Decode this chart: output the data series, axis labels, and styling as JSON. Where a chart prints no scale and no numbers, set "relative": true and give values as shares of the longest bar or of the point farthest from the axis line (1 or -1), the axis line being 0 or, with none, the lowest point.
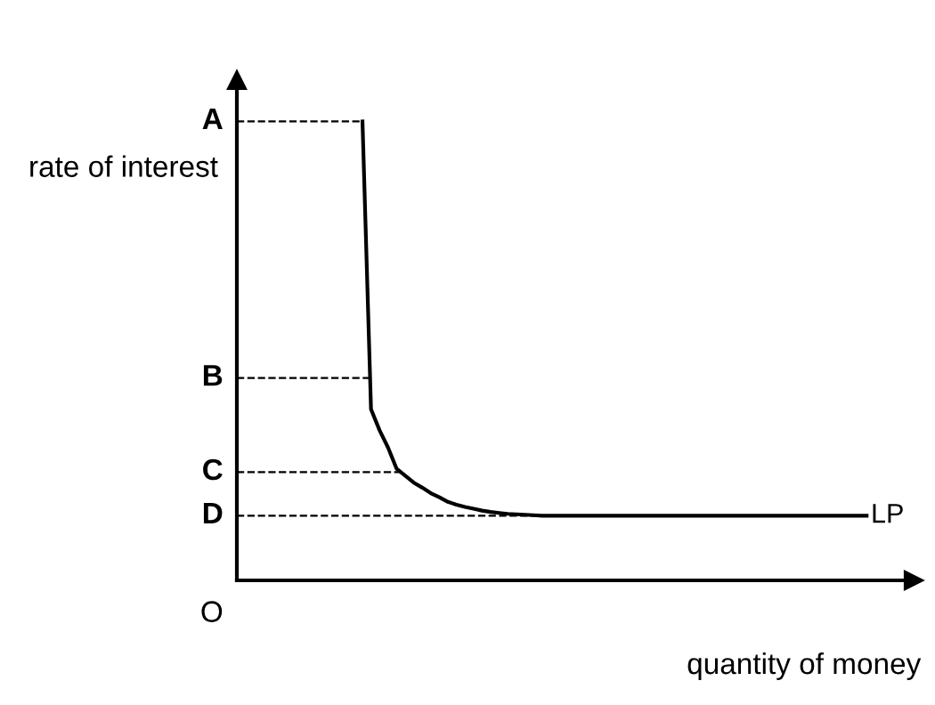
{
  "chart_data": {
    "type": "line",
    "relative": true,
    "xlabel": "quantity of money",
    "ylabel": "rate of interest",
    "tick_labels": false,
    "legend": false,
    "grid": false,
    "marker": "none",
    "line_style": "solid",
    "categories": [
      null,
      null,
      null,
      null,
      null,
      null,
      null,
      null,
      null,
      null,
      null,
      null,
      null,
      null,
      null,
      null,
      null,
      null,
      null,
      null,
      null,
      null,
      null,
      null,
      null,
      null,
      null,
      null,
      null,
      null,
      null,
      null,
      null,
      null,
      null,
      null,
      null,
      null,
      null,
      null,
      null,
      null,
      null,
      null,
      null,
      null,
      null,
      null,
      null,
      null,
      null,
      null,
      null,
      null,
      null,
      null,
      null,
      null,
      null,
      null
    ],
    "series": [
      {
        "name": "LP",
        "color": "#000000",
        "values": [
          1,
          0.373,
          0.327,
          0.289,
          0.243,
          0.228,
          0.213,
          0.202,
          0.19,
          0.181,
          0.171,
          0.165,
          0.16,
          0.156,
          0.152,
          0.149,
          0.147,
          0.145,
          0.144,
          0.143,
          0.142,
          0.141,
          0.141,
          0.141,
          0.141,
          0.141,
          0.141,
          0.141,
          0.141,
          0.141,
          0.141,
          0.141,
          0.141,
          0.141,
          0.141,
          0.141,
          0.141,
          0.141,
          0.141,
          0.141,
          0.141,
          0.141,
          0.141,
          0.141,
          0.141,
          0.141,
          0.141,
          0.141,
          0.141,
          0.141,
          0.141,
          0.141,
          0.141,
          0.141,
          0.141,
          0.141,
          0.141,
          0.141,
          0.141,
          0.141
        ]
      }
    ],
    "ref_lines": [
      {
        "axis": "y",
        "value": 1,
        "label": "A",
        "color": "#000000",
        "line_style": "dashed"
      },
      {
        "axis": "y",
        "value": 0.441,
        "label": "B",
        "color": "#000000",
        "line_style": "dashed"
      },
      {
        "axis": "y",
        "value": 0.236,
        "label": "C",
        "color": "#000000",
        "line_style": "dashed"
      },
      {
        "axis": "y",
        "value": 0.141,
        "label": "D",
        "color": "#000000",
        "line_style": "dashed"
      }
    ],
    "annotations": [
      "O"
    ]
  }
}
